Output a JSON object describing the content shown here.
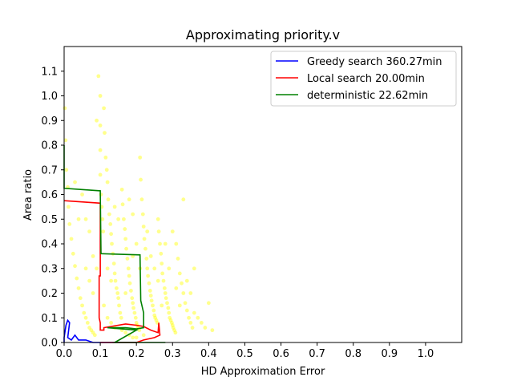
{
  "chart_data": {
    "type": "line",
    "title": "Approximating priority.v",
    "xlabel": "HD Approximation Error",
    "ylabel": "Area ratio",
    "xlim": [
      0,
      1.1
    ],
    "ylim": [
      0,
      1.2
    ],
    "xticks": [
      "0.0",
      "0.1",
      "0.2",
      "0.3",
      "0.4",
      "0.5",
      "0.6",
      "0.7",
      "0.8",
      "0.9",
      "1.0"
    ],
    "yticks": [
      "0.0",
      "0.1",
      "0.2",
      "0.3",
      "0.4",
      "0.5",
      "0.6",
      "0.7",
      "0.8",
      "0.9",
      "1.0",
      "1.1"
    ],
    "grid": false,
    "legend_position": "top-right",
    "scatter": {
      "name": "",
      "color": "#ffff00",
      "points": [
        [
          0.002,
          0.95
        ],
        [
          0.004,
          0.82
        ],
        [
          0.006,
          0.7
        ],
        [
          0.01,
          0.63
        ],
        [
          0.012,
          0.55
        ],
        [
          0.015,
          0.48
        ],
        [
          0.02,
          0.42
        ],
        [
          0.025,
          0.36
        ],
        [
          0.03,
          0.31
        ],
        [
          0.035,
          0.26
        ],
        [
          0.04,
          0.22
        ],
        [
          0.045,
          0.18
        ],
        [
          0.05,
          0.15
        ],
        [
          0.055,
          0.12
        ],
        [
          0.06,
          0.1
        ],
        [
          0.065,
          0.08
        ],
        [
          0.07,
          0.06
        ],
        [
          0.075,
          0.05
        ],
        [
          0.08,
          0.04
        ],
        [
          0.085,
          0.03
        ],
        [
          0.09,
          0.9
        ],
        [
          0.095,
          1.08
        ],
        [
          0.1,
          1.0
        ],
        [
          0.1,
          0.88
        ],
        [
          0.1,
          0.78
        ],
        [
          0.1,
          0.68
        ],
        [
          0.102,
          0.6
        ],
        [
          0.104,
          0.55
        ],
        [
          0.106,
          0.5
        ],
        [
          0.108,
          0.45
        ],
        [
          0.11,
          0.95
        ],
        [
          0.112,
          0.85
        ],
        [
          0.115,
          0.75
        ],
        [
          0.118,
          0.7
        ],
        [
          0.12,
          0.65
        ],
        [
          0.122,
          0.58
        ],
        [
          0.125,
          0.52
        ],
        [
          0.128,
          0.48
        ],
        [
          0.13,
          0.44
        ],
        [
          0.132,
          0.4
        ],
        [
          0.135,
          0.36
        ],
        [
          0.138,
          0.32
        ],
        [
          0.14,
          0.28
        ],
        [
          0.142,
          0.25
        ],
        [
          0.145,
          0.22
        ],
        [
          0.148,
          0.2
        ],
        [
          0.15,
          0.18
        ],
        [
          0.152,
          0.15
        ],
        [
          0.155,
          0.12
        ],
        [
          0.158,
          0.1
        ],
        [
          0.16,
          0.62
        ],
        [
          0.162,
          0.56
        ],
        [
          0.165,
          0.5
        ],
        [
          0.168,
          0.46
        ],
        [
          0.17,
          0.42
        ],
        [
          0.172,
          0.38
        ],
        [
          0.175,
          0.34
        ],
        [
          0.178,
          0.3
        ],
        [
          0.18,
          0.27
        ],
        [
          0.182,
          0.24
        ],
        [
          0.185,
          0.21
        ],
        [
          0.188,
          0.18
        ],
        [
          0.19,
          0.16
        ],
        [
          0.192,
          0.14
        ],
        [
          0.195,
          0.12
        ],
        [
          0.198,
          0.1
        ],
        [
          0.2,
          0.08
        ],
        [
          0.202,
          0.07
        ],
        [
          0.205,
          0.06
        ],
        [
          0.208,
          0.05
        ],
        [
          0.21,
          0.75
        ],
        [
          0.212,
          0.66
        ],
        [
          0.215,
          0.58
        ],
        [
          0.218,
          0.52
        ],
        [
          0.22,
          0.47
        ],
        [
          0.222,
          0.42
        ],
        [
          0.225,
          0.38
        ],
        [
          0.228,
          0.34
        ],
        [
          0.23,
          0.3
        ],
        [
          0.232,
          0.27
        ],
        [
          0.235,
          0.24
        ],
        [
          0.238,
          0.21
        ],
        [
          0.24,
          0.19
        ],
        [
          0.242,
          0.17
        ],
        [
          0.245,
          0.15
        ],
        [
          0.248,
          0.13
        ],
        [
          0.25,
          0.11
        ],
        [
          0.252,
          0.1
        ],
        [
          0.255,
          0.09
        ],
        [
          0.258,
          0.08
        ],
        [
          0.26,
          0.5
        ],
        [
          0.262,
          0.45
        ],
        [
          0.265,
          0.4
        ],
        [
          0.268,
          0.36
        ],
        [
          0.27,
          0.32
        ],
        [
          0.272,
          0.28
        ],
        [
          0.275,
          0.25
        ],
        [
          0.278,
          0.22
        ],
        [
          0.28,
          0.2
        ],
        [
          0.282,
          0.18
        ],
        [
          0.285,
          0.16
        ],
        [
          0.288,
          0.14
        ],
        [
          0.29,
          0.12
        ],
        [
          0.292,
          0.1
        ],
        [
          0.295,
          0.09
        ],
        [
          0.298,
          0.08
        ],
        [
          0.3,
          0.07
        ],
        [
          0.302,
          0.06
        ],
        [
          0.305,
          0.05
        ],
        [
          0.308,
          0.04
        ],
        [
          0.31,
          0.4
        ],
        [
          0.315,
          0.34
        ],
        [
          0.32,
          0.28
        ],
        [
          0.325,
          0.24
        ],
        [
          0.33,
          0.2
        ],
        [
          0.335,
          0.16
        ],
        [
          0.34,
          0.13
        ],
        [
          0.345,
          0.1
        ],
        [
          0.35,
          0.08
        ],
        [
          0.355,
          0.06
        ],
        [
          0.36,
          0.12
        ],
        [
          0.37,
          0.1
        ],
        [
          0.38,
          0.08
        ],
        [
          0.39,
          0.06
        ],
        [
          0.4,
          0.16
        ],
        [
          0.41,
          0.05
        ],
        [
          0.14,
          0.55
        ],
        [
          0.15,
          0.5
        ],
        [
          0.18,
          0.58
        ],
        [
          0.19,
          0.52
        ],
        [
          0.12,
          0.3
        ],
        [
          0.13,
          0.25
        ],
        [
          0.17,
          0.2
        ],
        [
          0.19,
          0.35
        ],
        [
          0.2,
          0.4
        ],
        [
          0.21,
          0.3
        ],
        [
          0.23,
          0.45
        ],
        [
          0.24,
          0.35
        ],
        [
          0.25,
          0.3
        ],
        [
          0.26,
          0.25
        ],
        [
          0.11,
          0.15
        ],
        [
          0.12,
          0.1
        ],
        [
          0.13,
          0.08
        ],
        [
          0.14,
          0.06
        ],
        [
          0.16,
          0.05
        ],
        [
          0.17,
          0.04
        ],
        [
          0.18,
          0.03
        ],
        [
          0.19,
          0.02
        ],
        [
          0.2,
          0.02
        ],
        [
          0.22,
          0.03
        ],
        [
          0.05,
          0.6
        ],
        [
          0.06,
          0.5
        ],
        [
          0.07,
          0.45
        ],
        [
          0.08,
          0.35
        ],
        [
          0.09,
          0.3
        ],
        [
          0.03,
          0.65
        ],
        [
          0.04,
          0.5
        ],
        [
          0.06,
          0.3
        ],
        [
          0.07,
          0.25
        ],
        [
          0.08,
          0.2
        ],
        [
          0.33,
          0.58
        ],
        [
          0.3,
          0.45
        ],
        [
          0.28,
          0.4
        ],
        [
          0.27,
          0.15
        ],
        [
          0.29,
          0.3
        ],
        [
          0.31,
          0.22
        ],
        [
          0.32,
          0.15
        ],
        [
          0.34,
          0.25
        ],
        [
          0.36,
          0.3
        ],
        [
          0.35,
          0.2
        ]
      ]
    },
    "series": [
      {
        "name": "Greedy search 360.27min",
        "color": "#0000ff",
        "points": [
          [
            0.0,
            0.0
          ],
          [
            0.0,
            0.02
          ],
          [
            0.005,
            0.07
          ],
          [
            0.01,
            0.09
          ],
          [
            0.015,
            0.08
          ],
          [
            0.01,
            0.02
          ],
          [
            0.02,
            0.01
          ],
          [
            0.03,
            0.03
          ],
          [
            0.04,
            0.01
          ],
          [
            0.06,
            0.01
          ],
          [
            0.08,
            0.0
          ],
          [
            0.1,
            0.0
          ],
          [
            0.15,
            0.0
          ],
          [
            0.2,
            0.0
          ]
        ]
      },
      {
        "name": "Local search 20.00min",
        "color": "#ff0000",
        "points": [
          [
            0.0,
            0.575
          ],
          [
            0.1,
            0.565
          ],
          [
            0.1,
            0.27
          ],
          [
            0.097,
            0.27
          ],
          [
            0.097,
            0.1
          ],
          [
            0.1,
            0.08
          ],
          [
            0.1,
            0.05
          ],
          [
            0.11,
            0.05
          ],
          [
            0.11,
            0.06
          ],
          [
            0.13,
            0.065
          ],
          [
            0.17,
            0.075
          ],
          [
            0.2,
            0.07
          ],
          [
            0.22,
            0.065
          ],
          [
            0.24,
            0.05
          ],
          [
            0.26,
            0.04
          ],
          [
            0.262,
            0.08
          ],
          [
            0.265,
            0.03
          ],
          [
            0.25,
            0.02
          ],
          [
            0.22,
            0.01
          ],
          [
            0.2,
            0.0
          ],
          [
            0.12,
            0.0
          ],
          [
            0.1,
            0.0
          ]
        ]
      },
      {
        "name": "deterministic 22.62min",
        "color": "#008000",
        "points": [
          [
            0.0,
            0.8
          ],
          [
            0.0,
            0.625
          ],
          [
            0.1,
            0.615
          ],
          [
            0.102,
            0.36
          ],
          [
            0.21,
            0.355
          ],
          [
            0.212,
            0.17
          ],
          [
            0.22,
            0.12
          ],
          [
            0.22,
            0.06
          ],
          [
            0.2,
            0.055
          ],
          [
            0.17,
            0.06
          ],
          [
            0.12,
            0.06
          ],
          [
            0.2,
            0.05
          ],
          [
            0.14,
            0.0
          ],
          [
            0.28,
            0.0
          ]
        ]
      }
    ]
  }
}
